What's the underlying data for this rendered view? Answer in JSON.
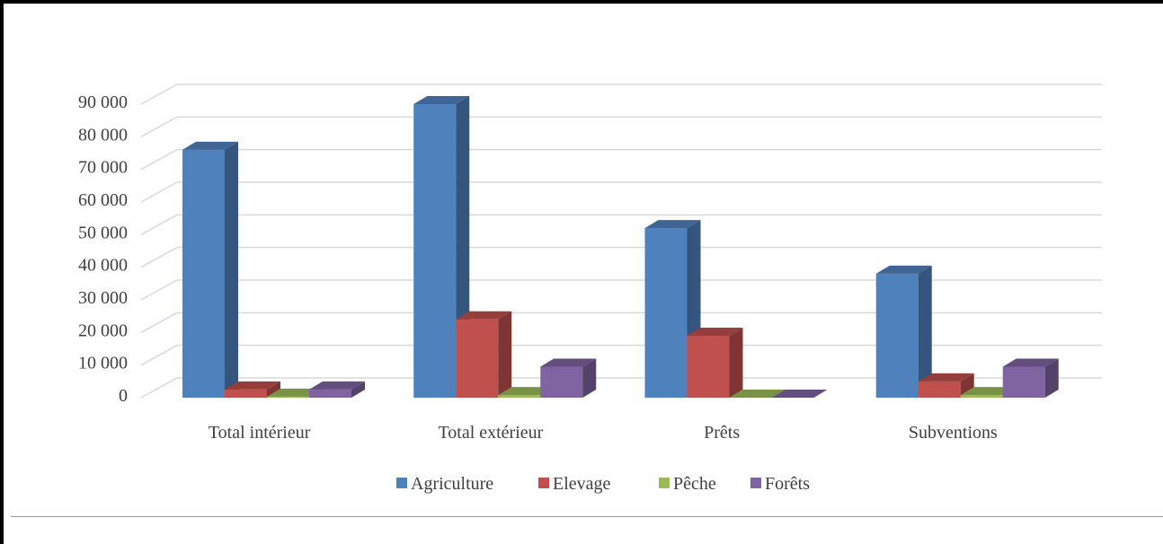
{
  "chart_data": {
    "type": "bar",
    "categories": [
      "Total intérieur",
      "Total extérieur",
      "Prêts",
      "Subventions"
    ],
    "series": [
      {
        "name": "Agriculture",
        "color": "#4f81bd",
        "values": [
          76000,
          90000,
          52000,
          38000
        ]
      },
      {
        "name": "Elevage",
        "color": "#c0504d",
        "values": [
          2500,
          24000,
          19000,
          5000
        ]
      },
      {
        "name": "Pêche",
        "color": "#9bbb59",
        "values": [
          300,
          800,
          0,
          800
        ]
      },
      {
        "name": "Forêts",
        "color": "#8064a2",
        "values": [
          2500,
          9500,
          0,
          9500
        ]
      }
    ],
    "yticks": [
      "0",
      "10 000",
      "20 000",
      "30 000",
      "40 000",
      "50 000",
      "60 000",
      "70 000",
      "80 000",
      "90 000"
    ],
    "ylim": [
      0,
      90000
    ],
    "grid": true,
    "legend": "bottom",
    "three_d": true
  }
}
